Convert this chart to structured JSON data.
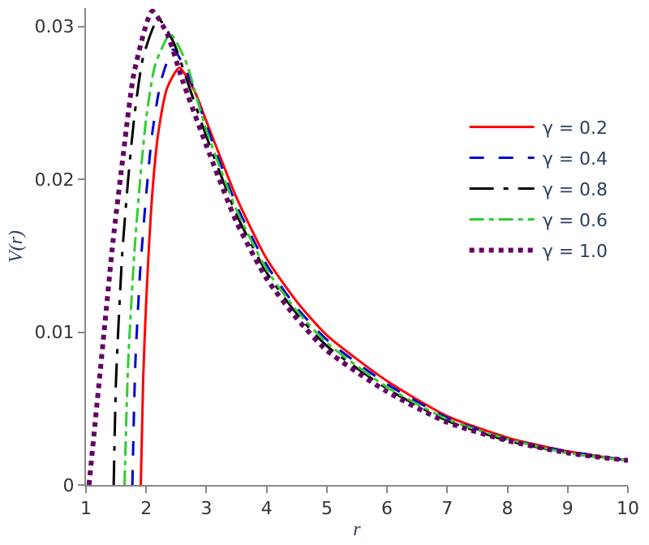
{
  "chart_data": {
    "type": "line",
    "xlabel": "r",
    "ylabel": "V(r)",
    "xlim": [
      1,
      10
    ],
    "xticks": [
      1,
      2,
      3,
      4,
      5,
      6,
      7,
      8,
      9,
      10
    ],
    "ylim": [
      0,
      0.0312
    ],
    "yticks": [
      0,
      0.01,
      0.02,
      0.03
    ],
    "legend": "top right",
    "marker": "none",
    "series": [
      {
        "name": "γ = 0.2",
        "color": "#ff0000",
        "line_style": "solid",
        "x": [
          1.91,
          1.95,
          2.0,
          2.1,
          2.2,
          2.35,
          2.55,
          2.8,
          3,
          3.5,
          4,
          4.5,
          5,
          6,
          7,
          8,
          9,
          10
        ],
        "values": [
          0,
          0.007,
          0.012,
          0.019,
          0.023,
          0.026,
          0.0273,
          0.0258,
          0.0238,
          0.0188,
          0.0148,
          0.012,
          0.0098,
          0.0068,
          0.0045,
          0.0031,
          0.0022,
          0.0016
        ]
      },
      {
        "name": "γ = 0.4",
        "color": "#0000cc",
        "line_style": "dashed",
        "x": [
          1.77,
          1.82,
          1.9,
          2.0,
          2.1,
          2.25,
          2.45,
          2.7,
          3,
          3.5,
          4,
          4.5,
          5,
          6,
          7,
          8,
          9,
          10
        ],
        "values": [
          0,
          0.008,
          0.014,
          0.019,
          0.023,
          0.0265,
          0.0285,
          0.0268,
          0.0235,
          0.0183,
          0.0144,
          0.0116,
          0.0095,
          0.0066,
          0.0044,
          0.003,
          0.0022,
          0.0016
        ]
      },
      {
        "name": "γ = 0.8",
        "color": "#000000",
        "line_style": "longdashdot",
        "x": [
          1.46,
          1.5,
          1.6,
          1.7,
          1.8,
          1.95,
          2.2,
          2.45,
          2.7,
          3,
          3.5,
          4,
          4.5,
          5,
          6,
          7,
          8,
          9,
          10
        ],
        "values": [
          0,
          0.007,
          0.015,
          0.02,
          0.024,
          0.028,
          0.0305,
          0.029,
          0.0262,
          0.0228,
          0.0177,
          0.0139,
          0.0112,
          0.0091,
          0.0063,
          0.0042,
          0.0029,
          0.0021,
          0.0016
        ]
      },
      {
        "name": "γ = 0.6",
        "color": "#33cc33",
        "line_style": "dashdot",
        "x": [
          1.64,
          1.7,
          1.8,
          1.9,
          2.0,
          2.15,
          2.4,
          2.65,
          3,
          3.5,
          4,
          4.5,
          5,
          6,
          7,
          8,
          9,
          10
        ],
        "values": [
          0,
          0.008,
          0.015,
          0.02,
          0.024,
          0.0275,
          0.0295,
          0.0278,
          0.0232,
          0.018,
          0.0141,
          0.0114,
          0.0093,
          0.0064,
          0.0043,
          0.003,
          0.0021,
          0.0016
        ]
      },
      {
        "name": "γ = 1.0",
        "color": "#660066",
        "line_style": "dotted",
        "x": [
          1.05,
          1.15,
          1.3,
          1.45,
          1.6,
          1.8,
          2.1,
          2.35,
          2.6,
          3,
          3.5,
          4,
          4.5,
          5,
          6,
          7,
          8,
          9,
          10
        ],
        "values": [
          0,
          0.004,
          0.01,
          0.016,
          0.021,
          0.027,
          0.031,
          0.0295,
          0.0265,
          0.0222,
          0.0172,
          0.0135,
          0.0109,
          0.0088,
          0.0061,
          0.0041,
          0.0029,
          0.0021,
          0.0016
        ]
      }
    ]
  }
}
